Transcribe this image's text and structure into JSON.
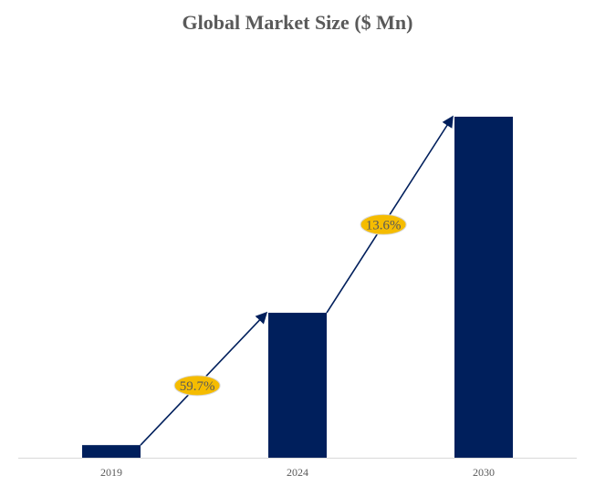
{
  "chart_data": {
    "type": "bar",
    "title": "Global Market Size ($ Mn)",
    "categories": [
      "2019",
      "2024",
      "2030"
    ],
    "values": [
      3.7,
      42.5,
      100
    ],
    "value_note": "relative heights; no axis values shown",
    "ylim": [
      0,
      100
    ],
    "xlabel": "",
    "ylabel": "",
    "grid": false,
    "annotations": [
      {
        "from": "2019",
        "to": "2024",
        "label": "59.7%"
      },
      {
        "from": "2024",
        "to": "2030",
        "label": "13.6%"
      }
    ],
    "colors": {
      "bar": "#001F5C",
      "badge": "#F5BC00",
      "badge_text": "#595959",
      "axis": "#D9D9D9"
    }
  }
}
